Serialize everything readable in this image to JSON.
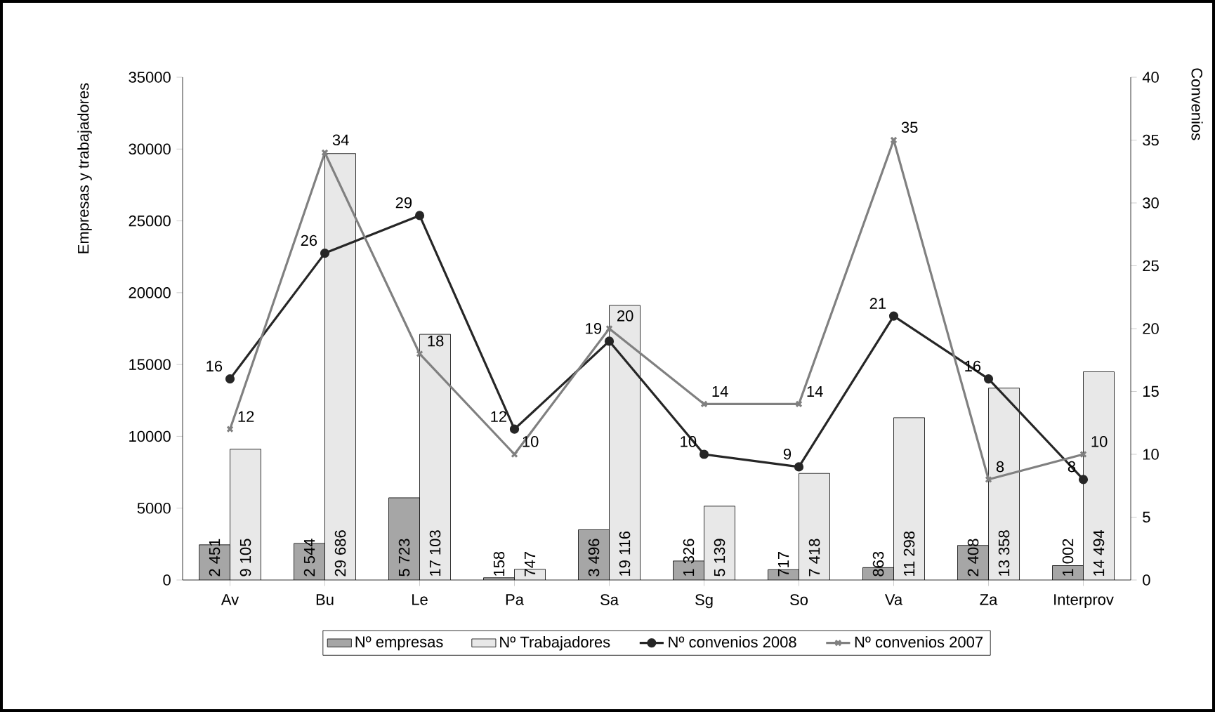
{
  "chart_data": {
    "type": "bar",
    "ylabel": "Empresas y trabajadores",
    "y2label": "Convenios",
    "categories": [
      "Av",
      "Bu",
      "Le",
      "Pa",
      "Sa",
      "Sg",
      "So",
      "Va",
      "Za",
      "Interprov"
    ],
    "series": [
      {
        "name": "Nº empresas",
        "color": "#a6a6a6",
        "values": [
          2451,
          2544,
          5723,
          158,
          3496,
          1326,
          717,
          863,
          2408,
          1002
        ],
        "value_labels": [
          "2 451",
          "2 544",
          "5 723",
          "158",
          "3 496",
          "1 326",
          "717",
          "863",
          "2 408",
          "1 002"
        ]
      },
      {
        "name": "Nº Trabajadores",
        "color": "#e8e8e8",
        "values": [
          9105,
          29686,
          17103,
          747,
          19116,
          5139,
          7418,
          11298,
          13358,
          14494
        ],
        "value_labels": [
          "9 105",
          "29 686",
          "17 103",
          "747",
          "19 116",
          "5 139",
          "7 418",
          "11 298",
          "13 358",
          "14 494"
        ]
      },
      {
        "name": "Nº convenios 2008",
        "type": "line",
        "axis": "y2",
        "marker": "circle",
        "color": "#262626",
        "values": [
          16,
          26,
          29,
          12,
          19,
          10,
          9,
          21,
          16,
          8
        ],
        "value_labels": [
          "16",
          "26",
          "29",
          "12",
          "19",
          "10",
          "9",
          "21",
          "16",
          "8"
        ]
      },
      {
        "name": "Nº convenios 2007",
        "type": "line",
        "axis": "y2",
        "marker": "cross",
        "color": "#808080",
        "values": [
          12,
          34,
          18,
          10,
          20,
          14,
          14,
          35,
          8,
          10
        ],
        "value_labels": [
          "12",
          "34",
          "18",
          "10",
          "20",
          "14",
          "14",
          "35",
          "8",
          "10"
        ]
      }
    ],
    "ylim": [
      0,
      35000
    ],
    "yticks": [
      0,
      5000,
      10000,
      15000,
      20000,
      25000,
      30000,
      35000
    ],
    "y2lim": [
      0,
      40
    ],
    "y2ticks": [
      0,
      5,
      10,
      15,
      20,
      25,
      30,
      35,
      40
    ],
    "legend": "bottom",
    "grid": false
  }
}
